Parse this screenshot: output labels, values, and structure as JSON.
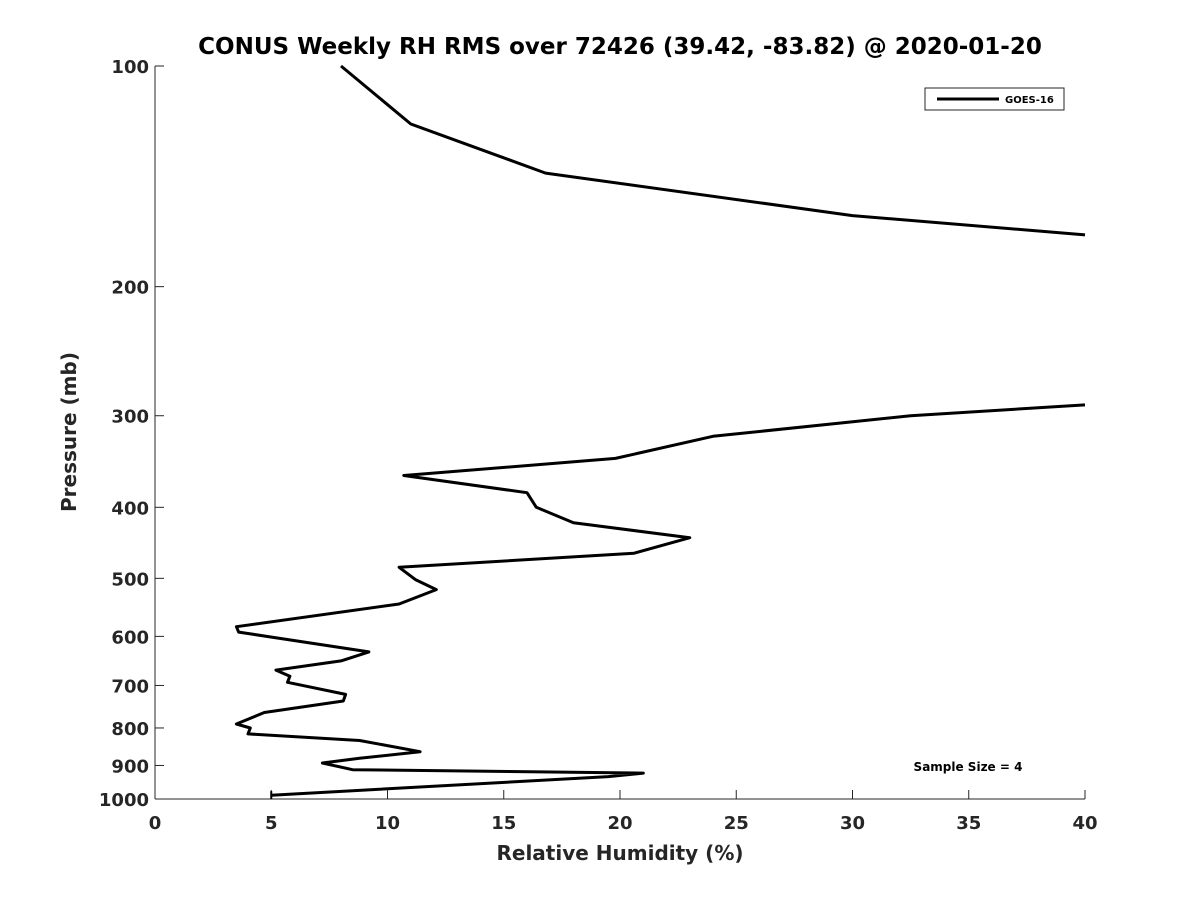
{
  "chart_data": {
    "type": "line",
    "title": "CONUS Weekly RH RMS over 72426 (39.42, -83.82) @ 2020-01-20",
    "xlabel": "Relative Humidity (%)",
    "ylabel": "Pressure (mb)",
    "xlim": [
      0,
      40
    ],
    "ylim": [
      100,
      1000
    ],
    "y_scale": "log",
    "y_reversed": true,
    "grid": false,
    "legend_position": "top-right",
    "x_ticks": [
      0,
      5,
      10,
      15,
      20,
      25,
      30,
      35,
      40
    ],
    "y_ticks": [
      100,
      200,
      300,
      400,
      500,
      600,
      700,
      800,
      900,
      1000
    ],
    "series": [
      {
        "name": "GOES-16",
        "color": "#000000",
        "points": [
          [
            8.0,
            100
          ],
          [
            11.0,
            120
          ],
          [
            16.8,
            140
          ],
          [
            30.0,
            160
          ],
          [
            40.0,
            170
          ]
        ]
      },
      {
        "name": "",
        "color": "#000000",
        "points": [
          [
            40.0,
            290
          ],
          [
            32.5,
            300
          ],
          [
            24.0,
            320
          ],
          [
            19.8,
            343
          ],
          [
            10.7,
            362
          ],
          [
            16.0,
            382
          ],
          [
            16.4,
            400
          ],
          [
            18.0,
            420
          ],
          [
            23.0,
            440
          ],
          [
            20.6,
            462
          ],
          [
            10.5,
            483
          ],
          [
            11.2,
            502
          ],
          [
            12.1,
            518
          ],
          [
            10.5,
            542
          ],
          [
            3.5,
            582
          ],
          [
            3.6,
            592
          ],
          [
            9.2,
            630
          ],
          [
            8.0,
            648
          ],
          [
            5.2,
            667
          ],
          [
            5.8,
            680
          ],
          [
            5.7,
            693
          ],
          [
            8.2,
            720
          ],
          [
            8.1,
            735
          ],
          [
            4.7,
            762
          ],
          [
            3.5,
            790
          ],
          [
            4.1,
            800
          ],
          [
            4.0,
            815
          ],
          [
            8.8,
            832
          ],
          [
            11.4,
            862
          ],
          [
            8.8,
            880
          ],
          [
            7.2,
            893
          ],
          [
            8.5,
            912
          ],
          [
            21.0,
            922
          ],
          [
            19.5,
            932
          ],
          [
            5.0,
            988
          ]
        ]
      }
    ],
    "annotation": "Sample Size = 4",
    "legend": [
      {
        "label": "GOES-16",
        "color": "#000000"
      }
    ]
  }
}
